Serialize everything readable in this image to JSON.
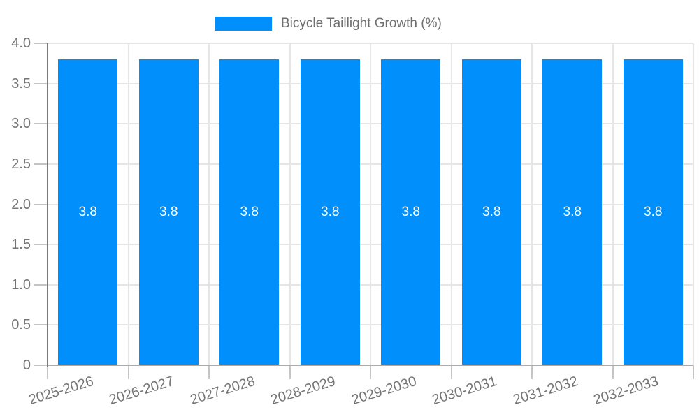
{
  "chart_data": {
    "type": "bar",
    "title": "",
    "legend": {
      "position": "top-center",
      "marker": "rectangle"
    },
    "categories": [
      "2025-2026",
      "2026-2027",
      "2027-2028",
      "2028-2029",
      "2029-2030",
      "2030-2031",
      "2031-2032",
      "2032-2033"
    ],
    "series": [
      {
        "name": "Bicycle Taillight Growth (%)",
        "color": "#008ffb",
        "values": [
          3.8,
          3.8,
          3.8,
          3.8,
          3.8,
          3.8,
          3.8,
          3.8
        ],
        "value_labels": [
          "3.8",
          "3.8",
          "3.8",
          "3.8",
          "3.8",
          "3.8",
          "3.8",
          "3.8"
        ]
      }
    ],
    "xlabel": "",
    "ylabel": "",
    "ylim": [
      0,
      4
    ],
    "ytick_labels_top_to_bottom": [
      "4.0",
      "3.5",
      "3.0",
      "2.5",
      "2.0",
      "1.5",
      "1.0",
      "0.5",
      "0"
    ],
    "grid": true,
    "x_label_rotation_deg": -17,
    "colors": {
      "bar": "#008ffb",
      "bar_value_label": "#ffffff",
      "axis_text": "#757575",
      "legend_text": "#6f6f6f",
      "gridline": "#e6e6e6",
      "y_axis_line": "#7a7a7a",
      "x_axis_line": "#ababab",
      "tick": "#c4c4c4"
    }
  }
}
